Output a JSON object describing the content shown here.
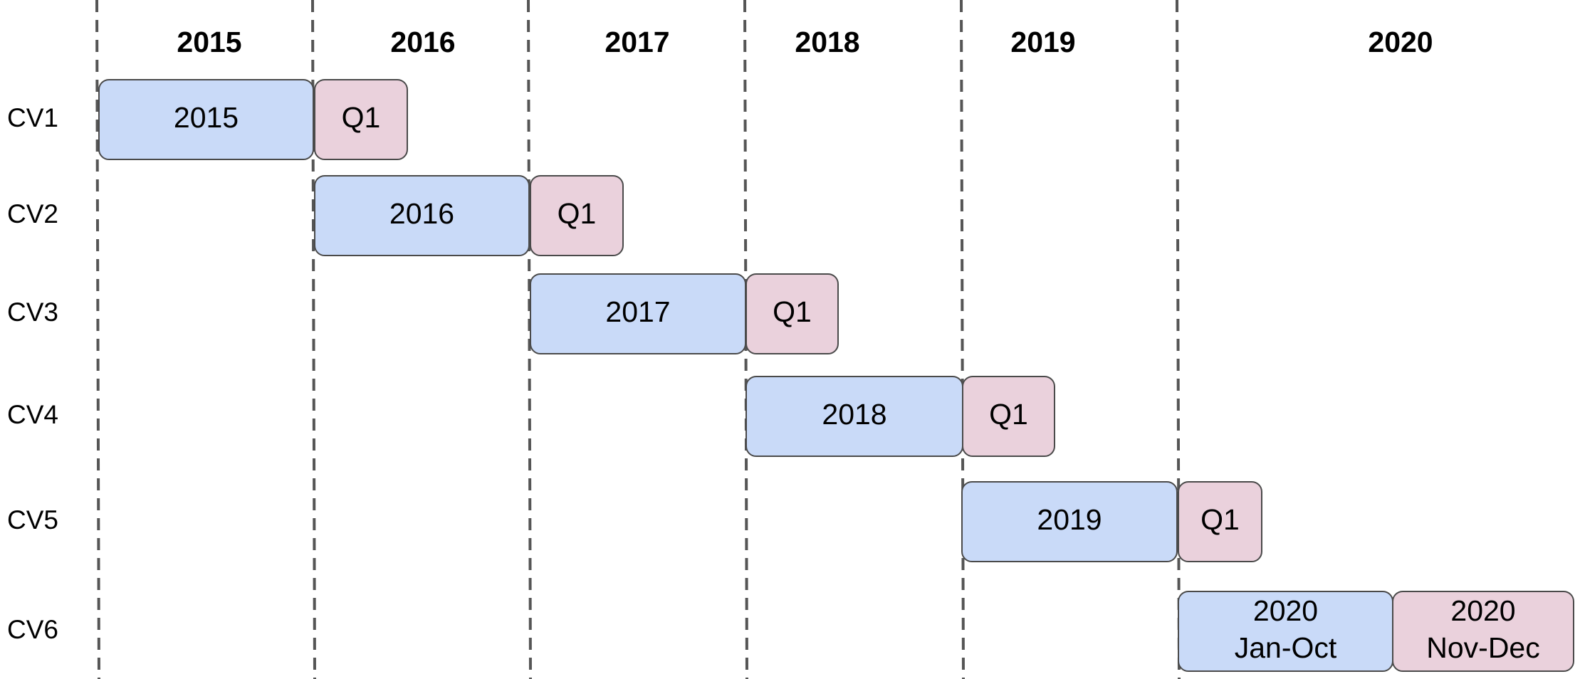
{
  "colors": {
    "train": "#c9daf8",
    "test": "#ead1dc",
    "border": "#4a4a4a",
    "gridline": "#555555"
  },
  "years": [
    {
      "label": "2015"
    },
    {
      "label": "2016"
    },
    {
      "label": "2017"
    },
    {
      "label": "2018"
    },
    {
      "label": "2019"
    },
    {
      "label": "2020"
    }
  ],
  "rows": [
    {
      "label": "CV1",
      "segments": [
        {
          "kind": "train",
          "lines": [
            "2015"
          ]
        },
        {
          "kind": "test",
          "lines": [
            "Q1"
          ]
        }
      ]
    },
    {
      "label": "CV2",
      "segments": [
        {
          "kind": "train",
          "lines": [
            "2016"
          ]
        },
        {
          "kind": "test",
          "lines": [
            "Q1"
          ]
        }
      ]
    },
    {
      "label": "CV3",
      "segments": [
        {
          "kind": "train",
          "lines": [
            "2017"
          ]
        },
        {
          "kind": "test",
          "lines": [
            "Q1"
          ]
        }
      ]
    },
    {
      "label": "CV4",
      "segments": [
        {
          "kind": "train",
          "lines": [
            "2018"
          ]
        },
        {
          "kind": "test",
          "lines": [
            "Q1"
          ]
        }
      ]
    },
    {
      "label": "CV5",
      "segments": [
        {
          "kind": "train",
          "lines": [
            "2019"
          ]
        },
        {
          "kind": "test",
          "lines": [
            "Q1"
          ]
        }
      ]
    },
    {
      "label": "CV6",
      "segments": [
        {
          "kind": "train",
          "lines": [
            "2020",
            "Jan-Oct"
          ]
        },
        {
          "kind": "test",
          "lines": [
            "2020",
            "Nov-Dec"
          ]
        }
      ]
    }
  ]
}
